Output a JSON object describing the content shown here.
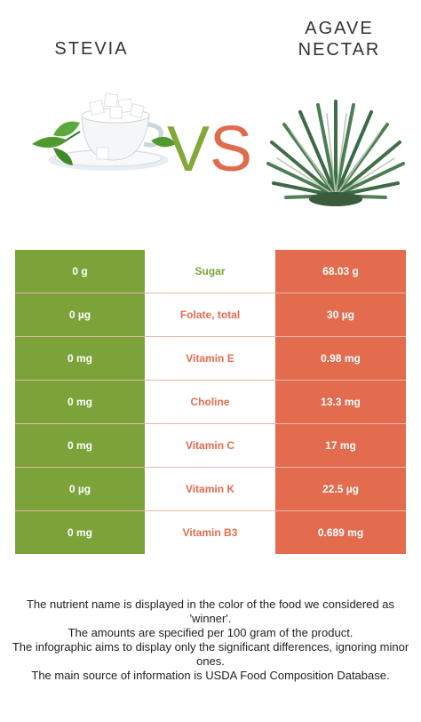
{
  "header": {
    "left_title": "STEVIA",
    "right_title_line1": "AGAVE",
    "right_title_line2": "NECTAR",
    "vs_v": "V",
    "vs_s": "S"
  },
  "colors": {
    "winner_green": "#7ca23a",
    "winner_red": "#e46c4e"
  },
  "rows": [
    {
      "left": "0 g",
      "nutrient": "Sugar",
      "right": "68.03 g",
      "winner": "left"
    },
    {
      "left": "0 µg",
      "nutrient": "Folate, total",
      "right": "30 µg",
      "winner": "right"
    },
    {
      "left": "0 mg",
      "nutrient": "Vitamin E",
      "right": "0.98 mg",
      "winner": "right"
    },
    {
      "left": "0 mg",
      "nutrient": "Choline",
      "right": "13.3 mg",
      "winner": "right"
    },
    {
      "left": "0 mg",
      "nutrient": "Vitamin C",
      "right": "17 mg",
      "winner": "right"
    },
    {
      "left": "0 µg",
      "nutrient": "Vitamin K",
      "right": "22.5 µg",
      "winner": "right"
    },
    {
      "left": "0 mg",
      "nutrient": "Vitamin B3",
      "right": "0.689 mg",
      "winner": "right"
    }
  ],
  "footnote": {
    "line1": "The nutrient name is displayed in the color of the food we considered as 'winner'.",
    "line2": "The amounts are specified per 100 gram of the product.",
    "line3": "The infographic aims to display only the significant differences, ignoring minor ones.",
    "line4": "The main source of information is USDA Food Composition Database."
  }
}
